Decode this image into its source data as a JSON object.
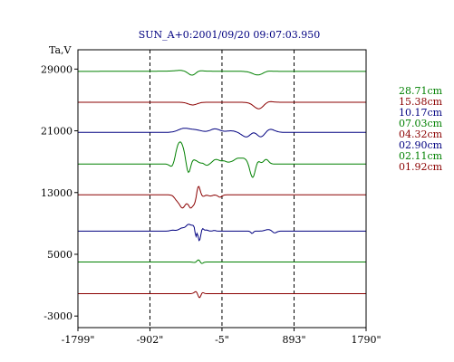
{
  "chart_data": {
    "type": "line",
    "title": "SUN_A+0:2001/09/20 09:07:03.950",
    "ylabel": "Ta,V",
    "xlabel": "",
    "y_ticks": [
      29000,
      21000,
      13000,
      5000,
      -3000
    ],
    "y_tick_labels": [
      "29000",
      "21000",
      "13000",
      "5000",
      "-3000"
    ],
    "ylim": [
      -4500,
      31500
    ],
    "x_ticks": [
      -1799,
      -902,
      -5,
      893,
      1790
    ],
    "x_tick_labels": [
      "-1799\"",
      "-902\"",
      "-5\"",
      "893\"",
      "1790\""
    ],
    "xlim": [
      -1799,
      1790
    ],
    "vlines": [
      -902,
      -5,
      893
    ],
    "grid": false,
    "legend_position": "right",
    "series": [
      {
        "name": "28.71cm",
        "color": "#008000",
        "baseline": 28700,
        "features": [
          [
            -520,
            80,
            70,
            500
          ],
          [
            -410,
            40,
            90,
            350
          ],
          [
            -365,
            -700,
            55,
            0
          ],
          [
            -315,
            300,
            45,
            0
          ],
          [
            450,
            -500,
            70,
            0
          ],
          [
            540,
            150,
            55,
            0
          ]
        ]
      },
      {
        "name": "15.38cm",
        "color": "#8b0000",
        "baseline": 24700,
        "features": [
          [
            -370,
            -350,
            55,
            0
          ],
          [
            460,
            -900,
            65,
            0
          ],
          [
            550,
            250,
            55,
            0
          ]
        ]
      },
      {
        "name": "10.17cm",
        "color": "#000080",
        "baseline": 20800,
        "features": [
          [
            -480,
            500,
            70,
            0
          ],
          [
            -330,
            300,
            70,
            0
          ],
          [
            -90,
            450,
            60,
            0
          ],
          [
            110,
            200,
            60,
            0
          ],
          [
            310,
            -700,
            60,
            0
          ],
          [
            400,
            600,
            55,
            0
          ],
          [
            470,
            -900,
            60,
            0
          ],
          [
            580,
            500,
            60,
            0
          ]
        ]
      },
      {
        "name": "07.03cm",
        "color": "#008000",
        "baseline": 16700,
        "features": [
          [
            -610,
            -600,
            35,
            0
          ],
          [
            -575,
            900,
            30,
            0
          ],
          [
            -525,
            2500,
            40,
            0
          ],
          [
            -460,
            1000,
            35,
            0
          ],
          [
            -425,
            -2000,
            30,
            0
          ],
          [
            -380,
            700,
            30,
            0
          ],
          [
            -320,
            300,
            30,
            0
          ],
          [
            -250,
            100,
            20,
            0
          ],
          [
            -190,
            -200,
            25,
            0
          ],
          [
            -140,
            -100,
            25,
            0
          ],
          [
            -80,
            600,
            50,
            0
          ],
          [
            20,
            300,
            30,
            0
          ],
          [
            100,
            200,
            40,
            0
          ],
          [
            180,
            500,
            40,
            0
          ],
          [
            270,
            700,
            55,
            0
          ],
          [
            380,
            -2000,
            35,
            0
          ],
          [
            430,
            700,
            30,
            0
          ],
          [
            545,
            600,
            30,
            0
          ]
        ]
      },
      {
        "name": "04.32cm",
        "color": "#8b0000",
        "baseline": 12700,
        "features": [
          [
            -570,
            -550,
            30,
            0
          ],
          [
            -500,
            -1600,
            35,
            0
          ],
          [
            -440,
            -500,
            30,
            0
          ],
          [
            -395,
            -1400,
            25,
            0
          ],
          [
            -345,
            -1000,
            25,
            0
          ],
          [
            -300,
            1300,
            20,
            0
          ],
          [
            -240,
            -200,
            20,
            0
          ],
          [
            -30,
            -300,
            25,
            0
          ],
          [
            -150,
            -150,
            25,
            0
          ]
        ]
      },
      {
        "name": "02.90cm",
        "color": "#000080",
        "baseline": 8000,
        "features": [
          [
            -620,
            120,
            30,
            0
          ],
          [
            -500,
            400,
            40,
            0
          ],
          [
            -420,
            800,
            30,
            0
          ],
          [
            -360,
            600,
            25,
            0
          ],
          [
            -330,
            -1000,
            10,
            0
          ],
          [
            -310,
            500,
            12,
            0
          ],
          [
            -290,
            -1400,
            18,
            0
          ],
          [
            -250,
            400,
            15,
            0
          ],
          [
            -200,
            150,
            20,
            0
          ],
          [
            -100,
            80,
            20,
            0
          ],
          [
            370,
            -300,
            15,
            0
          ],
          [
            570,
            200,
            40,
            0
          ],
          [
            650,
            -250,
            25,
            0
          ]
        ]
      },
      {
        "name": "02.11cm",
        "color": "#008000",
        "baseline": 4000,
        "features": [
          [
            -330,
            -120,
            25,
            0
          ],
          [
            -290,
            450,
            25,
            0
          ],
          [
            -265,
            -400,
            20,
            0
          ]
        ]
      },
      {
        "name": "01.92cm",
        "color": "#8b0000",
        "baseline": -100,
        "features": [
          [
            -320,
            350,
            25,
            0
          ],
          [
            -285,
            -800,
            20,
            0
          ],
          [
            -260,
            300,
            20,
            0
          ]
        ]
      }
    ]
  }
}
